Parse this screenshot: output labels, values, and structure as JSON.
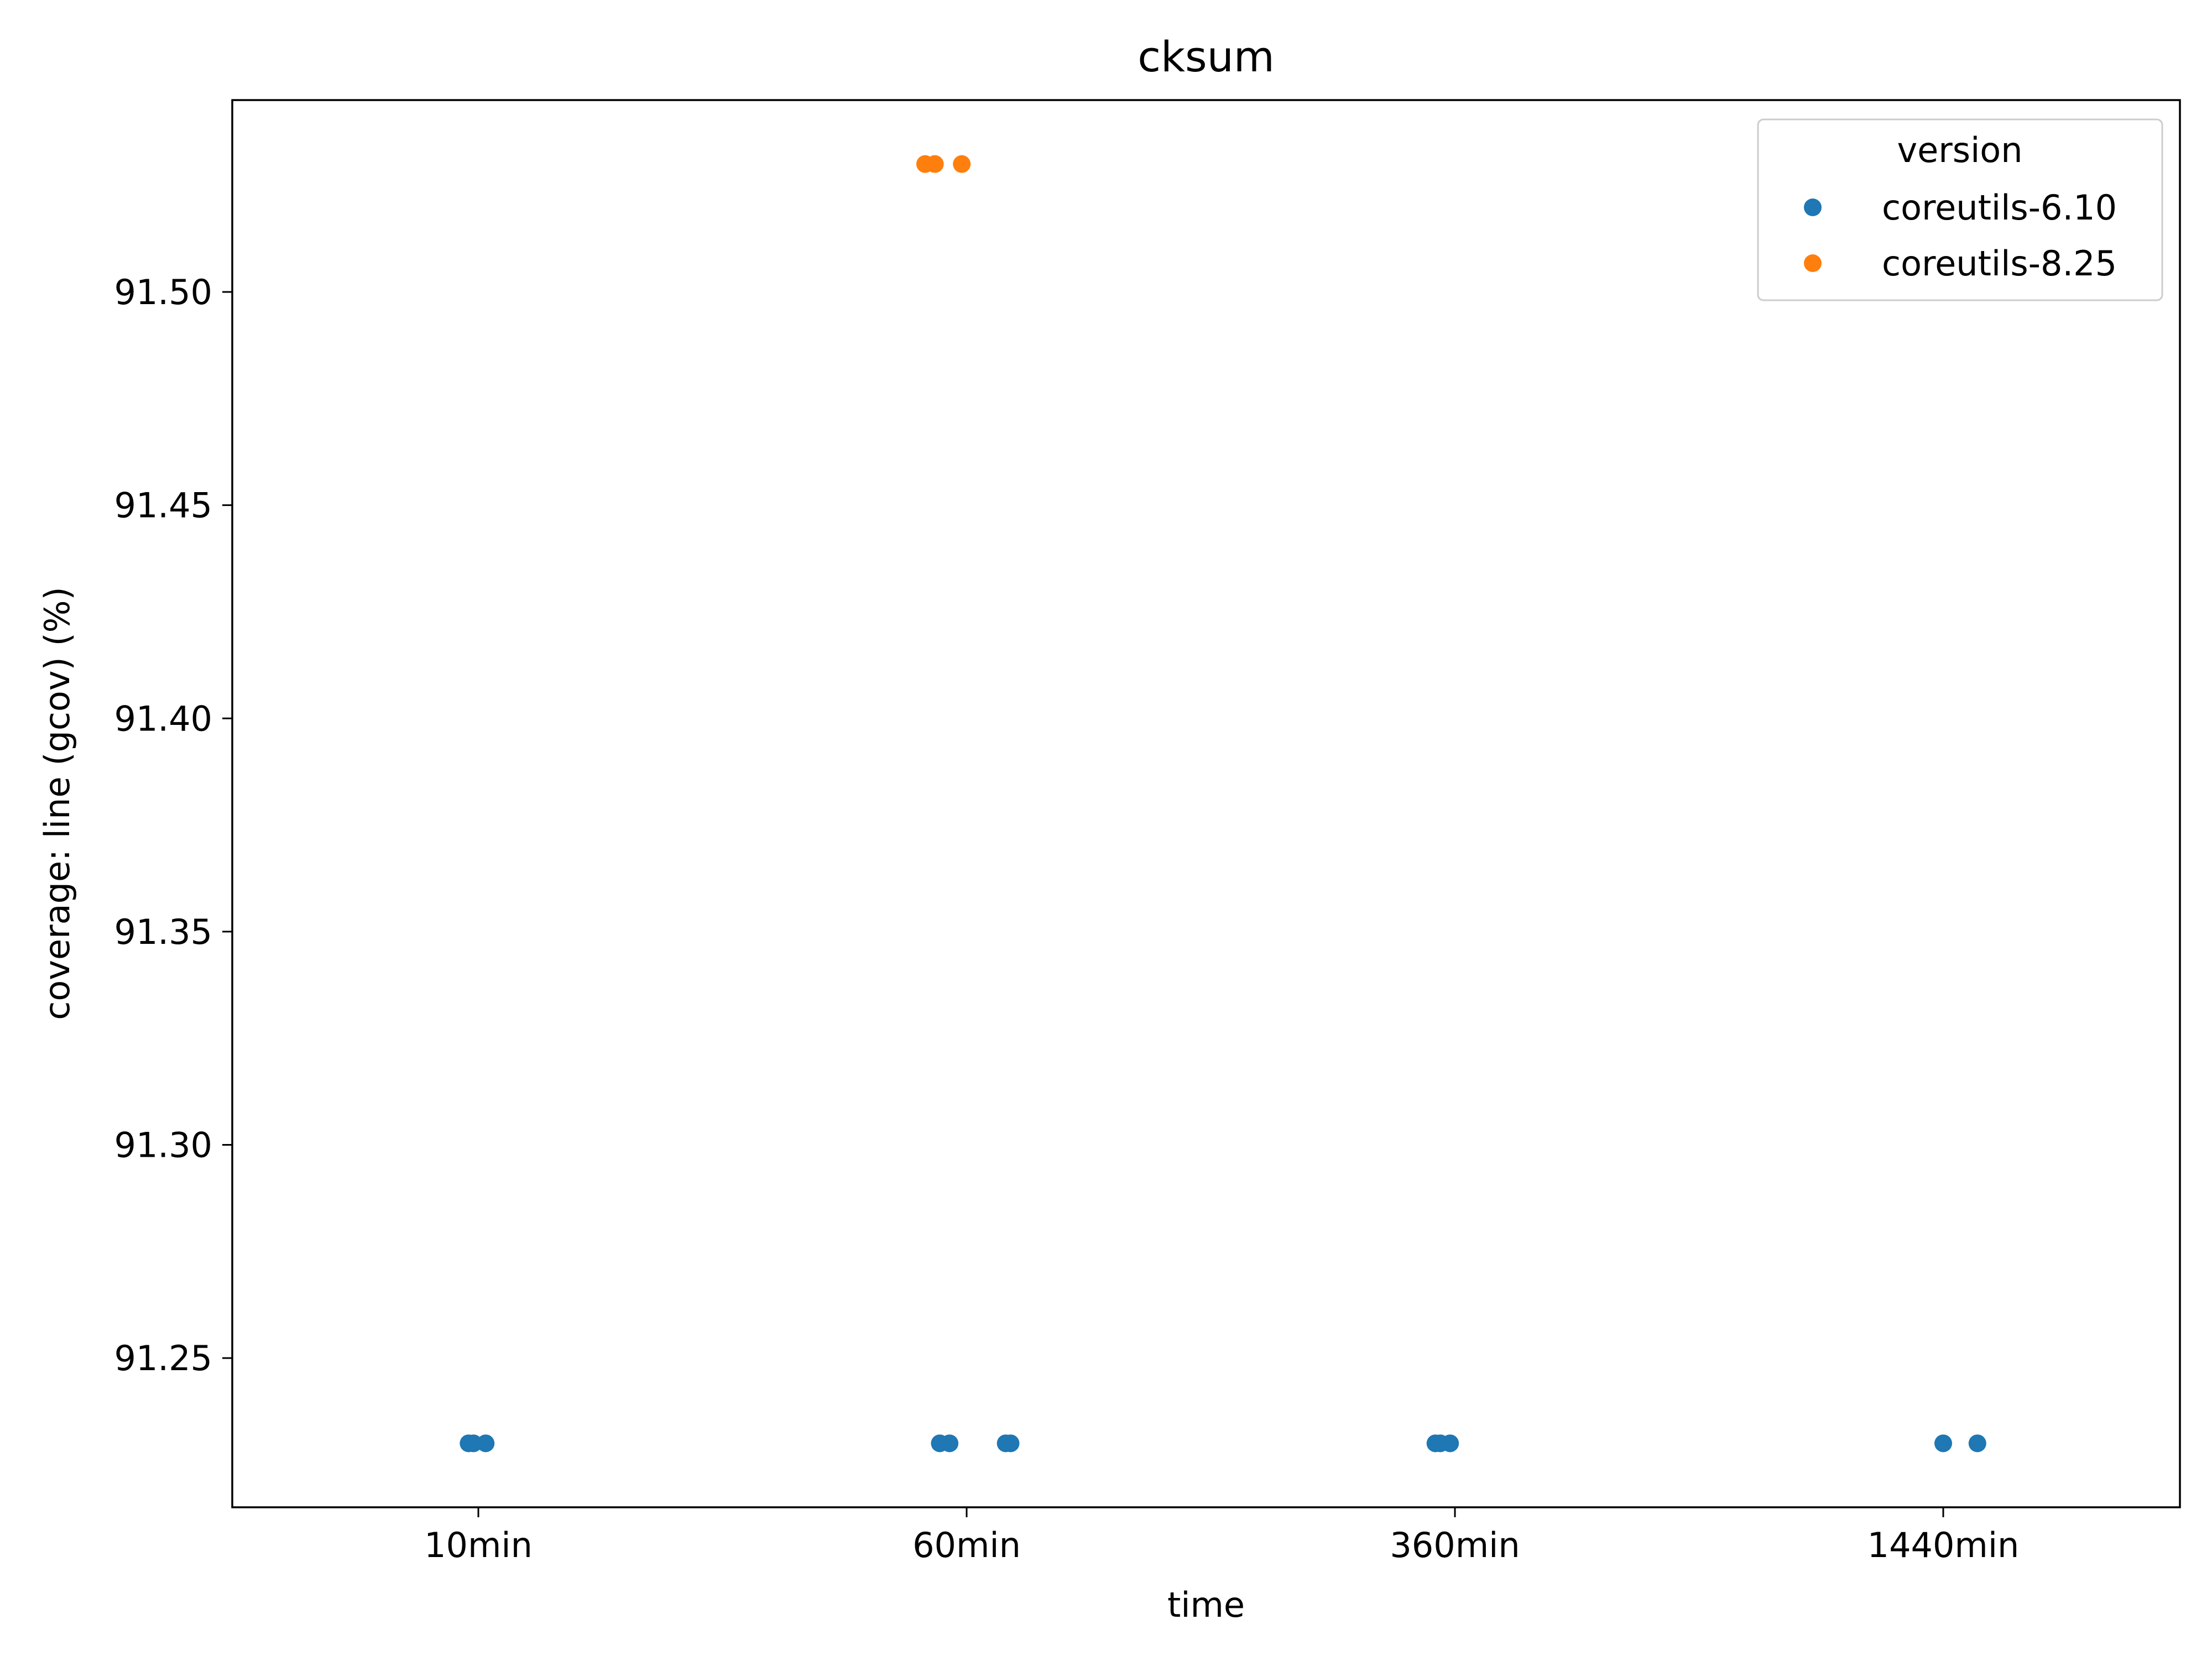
{
  "colors": {
    "coreutils-6.10": "#1f77b4",
    "coreutils-8.25": "#ff7f0e",
    "axis": "#000000",
    "background": "#ffffff"
  },
  "chart_data": {
    "type": "scatter",
    "title": "cksum",
    "xlabel": "time",
    "ylabel": "coverage: line (gcov) (%)",
    "categories": [
      "10min",
      "60min",
      "360min",
      "1440min"
    ],
    "ylim": [
      91.215,
      91.545
    ],
    "yticks": [
      91.25,
      91.3,
      91.35,
      91.4,
      91.45,
      91.5
    ],
    "ytick_labels": [
      "91.25",
      "91.30",
      "91.35",
      "91.40",
      "91.45",
      "91.50"
    ],
    "grid": false,
    "legend": {
      "title": "version",
      "position": "top-right",
      "entries": [
        "coreutils-6.10",
        "coreutils-8.25"
      ]
    },
    "series": [
      {
        "name": "coreutils-6.10",
        "points": [
          {
            "x": "10min",
            "jitter": -0.02,
            "y": 91.23
          },
          {
            "x": "10min",
            "jitter": -0.01,
            "y": 91.23
          },
          {
            "x": "10min",
            "jitter": 0.015,
            "y": 91.23
          },
          {
            "x": "60min",
            "jitter": -0.055,
            "y": 91.23
          },
          {
            "x": "60min",
            "jitter": -0.035,
            "y": 91.23
          },
          {
            "x": "60min",
            "jitter": 0.08,
            "y": 91.23
          },
          {
            "x": "60min",
            "jitter": 0.09,
            "y": 91.23
          },
          {
            "x": "360min",
            "jitter": -0.04,
            "y": 91.23
          },
          {
            "x": "360min",
            "jitter": -0.03,
            "y": 91.23
          },
          {
            "x": "360min",
            "jitter": -0.01,
            "y": 91.23
          },
          {
            "x": "1440min",
            "jitter": 0.0,
            "y": 91.23
          },
          {
            "x": "1440min",
            "jitter": 0.07,
            "y": 91.23
          }
        ]
      },
      {
        "name": "coreutils-8.25",
        "points": [
          {
            "x": "60min",
            "jitter": -0.085,
            "y": 91.53
          },
          {
            "x": "60min",
            "jitter": -0.065,
            "y": 91.53
          },
          {
            "x": "60min",
            "jitter": -0.01,
            "y": 91.53
          }
        ]
      }
    ]
  }
}
